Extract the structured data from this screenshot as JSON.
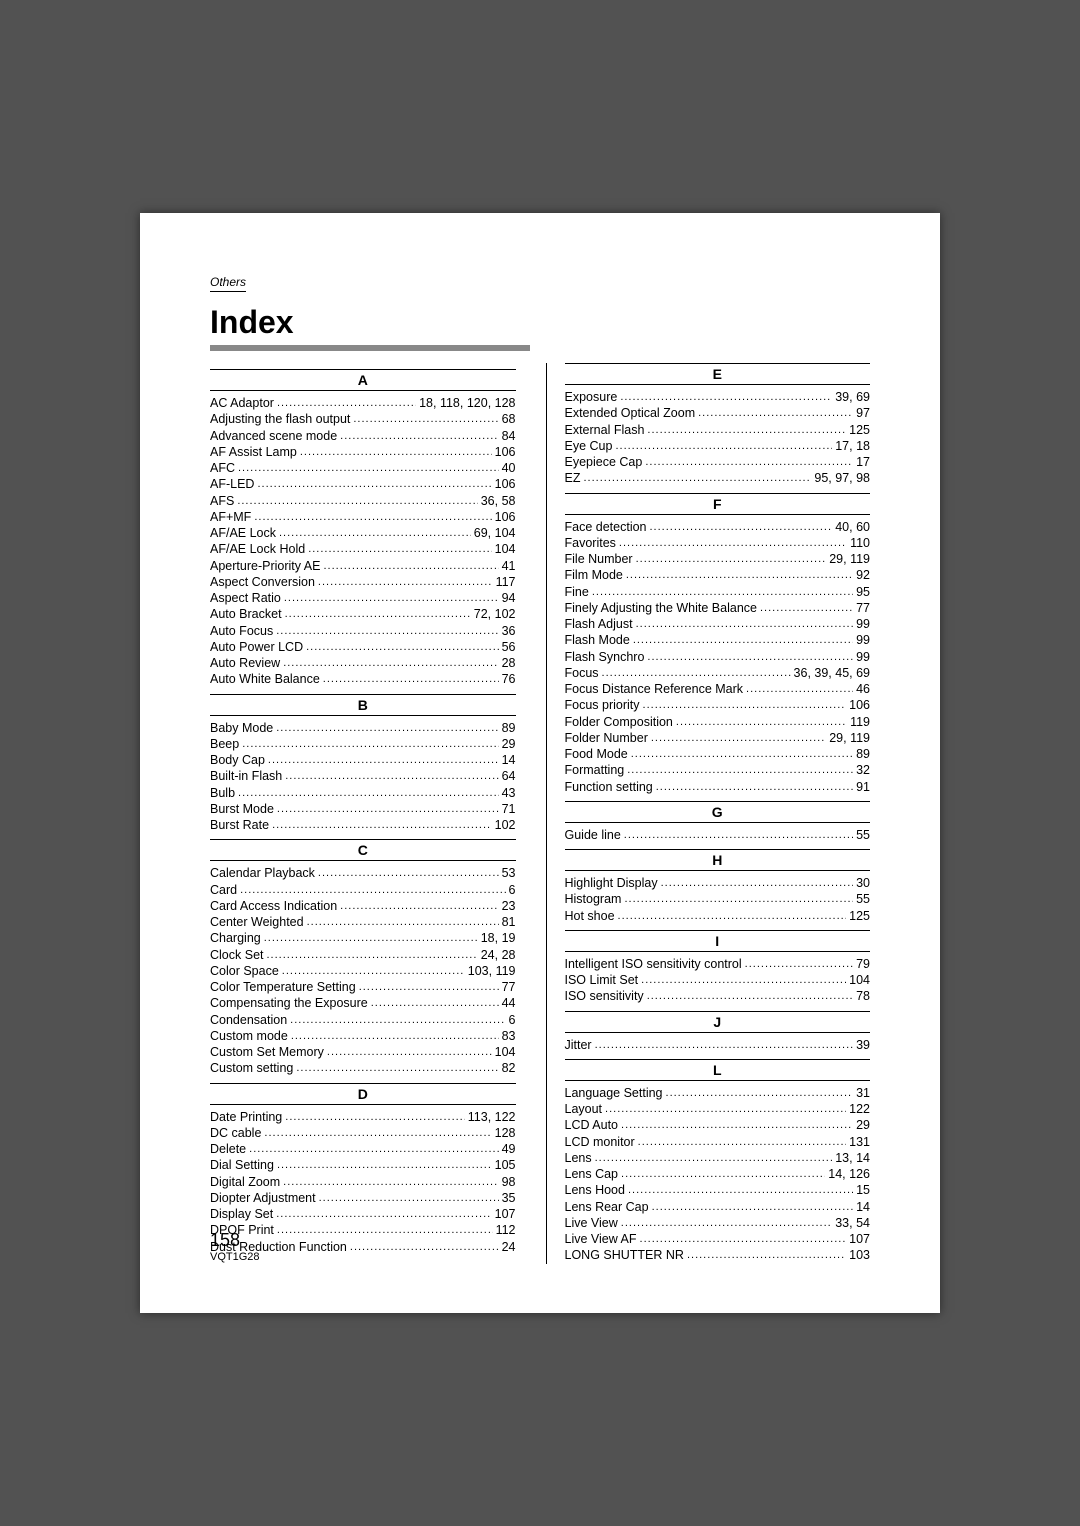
{
  "section_label": "Others",
  "title": "Index",
  "page_number": "158",
  "doc_code": "VQT1G28",
  "columns": [
    [
      {
        "letter": "A",
        "entries": [
          {
            "term": "AC Adaptor",
            "pages": "18, 118, 120, 128"
          },
          {
            "term": "Adjusting the flash output",
            "pages": "68"
          },
          {
            "term": "Advanced scene mode",
            "pages": "84"
          },
          {
            "term": "AF Assist Lamp",
            "pages": "106"
          },
          {
            "term": "AFC",
            "pages": "40"
          },
          {
            "term": "AF-LED",
            "pages": "106"
          },
          {
            "term": "AFS",
            "pages": "36, 58"
          },
          {
            "term": "AF+MF",
            "pages": "106"
          },
          {
            "term": "AF/AE Lock",
            "pages": "69, 104"
          },
          {
            "term": "AF/AE Lock Hold",
            "pages": "104"
          },
          {
            "term": "Aperture-Priority AE",
            "pages": "41"
          },
          {
            "term": "Aspect Conversion",
            "pages": "117"
          },
          {
            "term": "Aspect Ratio",
            "pages": "94"
          },
          {
            "term": "Auto Bracket",
            "pages": "72, 102"
          },
          {
            "term": "Auto Focus",
            "pages": "36"
          },
          {
            "term": "Auto Power LCD",
            "pages": "56"
          },
          {
            "term": "Auto Review",
            "pages": "28"
          },
          {
            "term": "Auto White Balance",
            "pages": "76"
          }
        ]
      },
      {
        "letter": "B",
        "entries": [
          {
            "term": "Baby Mode",
            "pages": "89"
          },
          {
            "term": "Beep",
            "pages": "29"
          },
          {
            "term": "Body Cap",
            "pages": "14"
          },
          {
            "term": "Built-in Flash",
            "pages": "64"
          },
          {
            "term": "Bulb",
            "pages": "43"
          },
          {
            "term": "Burst Mode",
            "pages": "71"
          },
          {
            "term": "Burst Rate",
            "pages": "102"
          }
        ]
      },
      {
        "letter": "C",
        "entries": [
          {
            "term": "Calendar Playback",
            "pages": "53"
          },
          {
            "term": "Card",
            "pages": "6"
          },
          {
            "term": "Card Access Indication",
            "pages": "23"
          },
          {
            "term": "Center Weighted",
            "pages": "81"
          },
          {
            "term": "Charging",
            "pages": "18, 19"
          },
          {
            "term": "Clock Set",
            "pages": "24, 28"
          },
          {
            "term": "Color Space",
            "pages": "103, 119"
          },
          {
            "term": "Color Temperature Setting",
            "pages": "77"
          },
          {
            "term": "Compensating the Exposure",
            "pages": "44"
          },
          {
            "term": "Condensation",
            "pages": "6"
          },
          {
            "term": "Custom mode",
            "pages": "83"
          },
          {
            "term": "Custom Set Memory",
            "pages": "104"
          },
          {
            "term": "Custom setting",
            "pages": "82"
          }
        ]
      },
      {
        "letter": "D",
        "entries": [
          {
            "term": "Date Printing",
            "pages": "113, 122"
          },
          {
            "term": "DC cable",
            "pages": "128"
          },
          {
            "term": "Delete",
            "pages": "49"
          },
          {
            "term": "Dial Setting",
            "pages": "105"
          },
          {
            "term": "Digital Zoom",
            "pages": "98"
          },
          {
            "term": "Diopter Adjustment",
            "pages": "35"
          },
          {
            "term": "Display Set",
            "pages": "107"
          },
          {
            "term": "DPOF Print",
            "pages": "112"
          },
          {
            "term": "Dust Reduction Function",
            "pages": "24"
          }
        ]
      }
    ],
    [
      {
        "letter": "E",
        "entries": [
          {
            "term": "Exposure",
            "pages": "39, 69"
          },
          {
            "term": "Extended Optical Zoom",
            "pages": "97"
          },
          {
            "term": "External Flash",
            "pages": "125"
          },
          {
            "term": "Eye Cup",
            "pages": "17, 18"
          },
          {
            "term": "Eyepiece Cap",
            "pages": "17"
          },
          {
            "term": "EZ",
            "pages": "95, 97, 98"
          }
        ]
      },
      {
        "letter": "F",
        "entries": [
          {
            "term": "Face detection",
            "pages": "40, 60"
          },
          {
            "term": "Favorites",
            "pages": "110"
          },
          {
            "term": "File Number",
            "pages": "29, 119"
          },
          {
            "term": "Film Mode",
            "pages": "92"
          },
          {
            "term": "Fine",
            "pages": "95"
          },
          {
            "term": "Finely Adjusting the White Balance",
            "pages": "77"
          },
          {
            "term": "Flash Adjust",
            "pages": "99"
          },
          {
            "term": "Flash Mode",
            "pages": "99"
          },
          {
            "term": "Flash Synchro",
            "pages": "99"
          },
          {
            "term": "Focus",
            "pages": "36, 39, 45, 69"
          },
          {
            "term": "Focus Distance Reference Mark",
            "pages": "46"
          },
          {
            "term": "Focus priority",
            "pages": "106"
          },
          {
            "term": "Folder Composition",
            "pages": "119"
          },
          {
            "term": "Folder Number",
            "pages": "29, 119"
          },
          {
            "term": "Food Mode",
            "pages": "89"
          },
          {
            "term": "Formatting",
            "pages": "32"
          },
          {
            "term": "Function setting",
            "pages": "91"
          }
        ]
      },
      {
        "letter": "G",
        "entries": [
          {
            "term": "Guide line",
            "pages": "55"
          }
        ]
      },
      {
        "letter": "H",
        "entries": [
          {
            "term": "Highlight Display",
            "pages": "30"
          },
          {
            "term": "Histogram",
            "pages": "55"
          },
          {
            "term": "Hot shoe",
            "pages": "125"
          }
        ]
      },
      {
        "letter": "I",
        "entries": [
          {
            "term": "Intelligent ISO sensitivity control",
            "pages": "79"
          },
          {
            "term": "ISO Limit Set",
            "pages": "104"
          },
          {
            "term": "ISO sensitivity",
            "pages": "78"
          }
        ]
      },
      {
        "letter": "J",
        "entries": [
          {
            "term": "Jitter",
            "pages": "39"
          }
        ]
      },
      {
        "letter": "L",
        "entries": [
          {
            "term": "Language Setting",
            "pages": "31"
          },
          {
            "term": "Layout",
            "pages": "122"
          },
          {
            "term": "LCD Auto",
            "pages": "29"
          },
          {
            "term": "LCD monitor",
            "pages": "131"
          },
          {
            "term": "Lens",
            "pages": "13, 14"
          },
          {
            "term": "Lens Cap",
            "pages": "14, 126"
          },
          {
            "term": "Lens Hood",
            "pages": "15"
          },
          {
            "term": "Lens Rear Cap",
            "pages": "14"
          },
          {
            "term": "Live View",
            "pages": "33, 54"
          },
          {
            "term": "Live View AF",
            "pages": "107"
          },
          {
            "term": "LONG SHUTTER NR",
            "pages": "103"
          }
        ]
      }
    ]
  ]
}
